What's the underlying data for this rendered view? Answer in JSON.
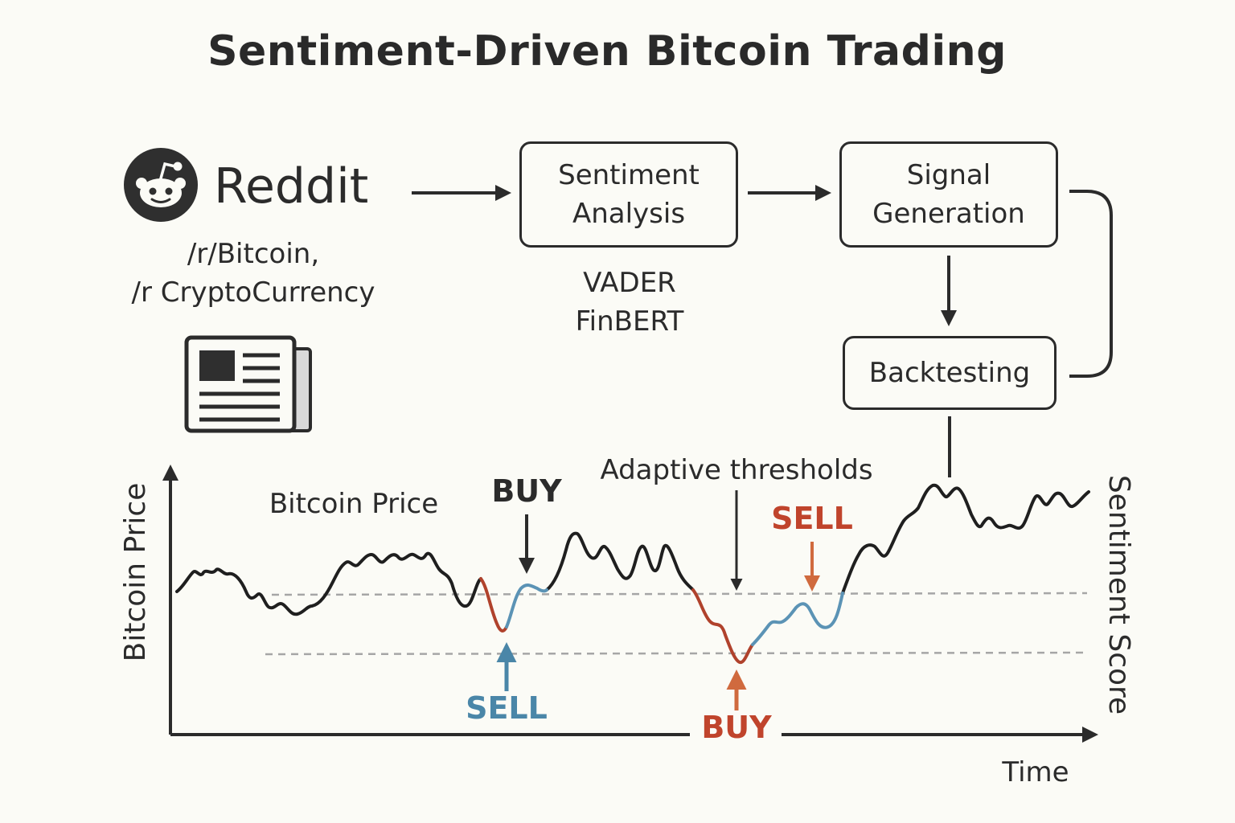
{
  "title": "Sentiment-Driven Bitcoin Trading",
  "source": {
    "brand": "Reddit",
    "subreddits": [
      "/r/Bitcoin,",
      "/r CryptoCurrency"
    ]
  },
  "pipeline": {
    "sentiment_analysis": [
      "Sentiment",
      "Analysis"
    ],
    "models": [
      "VADER",
      "FinBERT"
    ],
    "signal_generation": [
      "Signal",
      "Generation"
    ],
    "backtesting": "Backtesting"
  },
  "chart": {
    "series_label": "Bitcoin Price",
    "y_axis_left": "Bitcoin Price",
    "y_axis_right": "Sentiment Score",
    "x_axis": "Time",
    "threshold_label": "Adaptive thresholds",
    "signals": {
      "buy_top": "BUY",
      "sell_bottom": "SELL",
      "sell_top": "SELL",
      "buy_bottom": "BUY"
    },
    "colors": {
      "line": "#1f1f1f",
      "buy_signal": "#c0442c",
      "sell_signal": "#4a86a8",
      "threshold": "#a6a6a6"
    }
  }
}
